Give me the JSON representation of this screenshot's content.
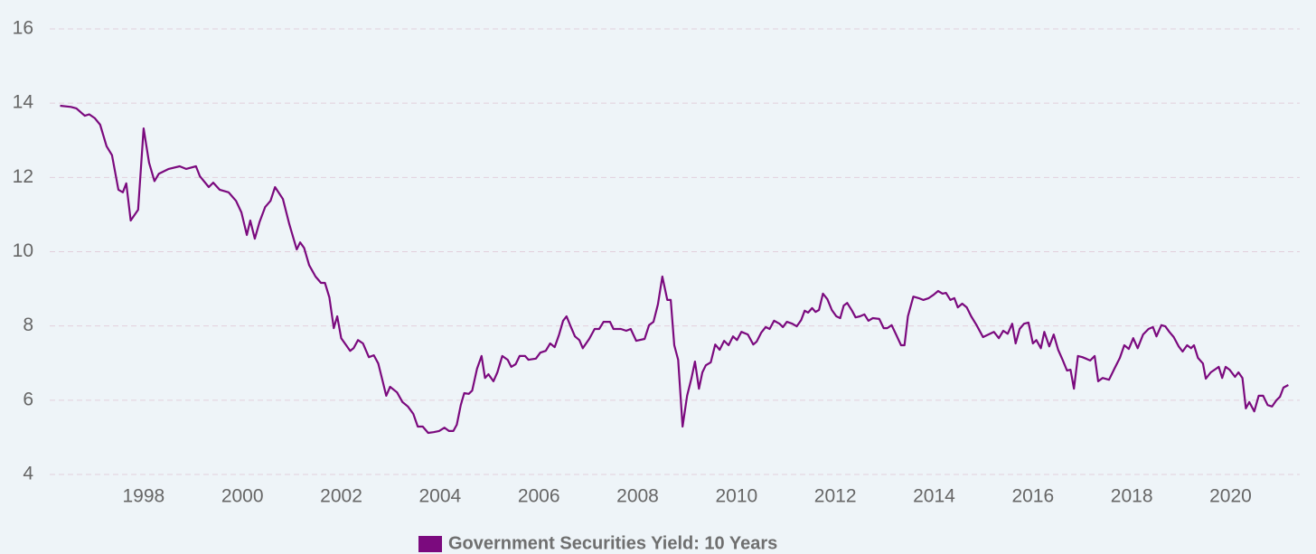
{
  "chart_data": {
    "type": "line",
    "x": [
      1996.31,
      1996.53,
      1996.64,
      1996.81,
      1996.9,
      1997.01,
      1997.12,
      1997.25,
      1997.36,
      1997.49,
      1997.58,
      1997.65,
      1997.74,
      1997.89,
      1998.0,
      1998.11,
      1998.22,
      1998.31,
      1998.51,
      1998.73,
      1998.86,
      1999.06,
      1999.14,
      1999.32,
      1999.41,
      1999.54,
      1999.72,
      1999.87,
      1999.98,
      2000.09,
      2000.16,
      2000.25,
      2000.35,
      2000.46,
      2000.57,
      2000.66,
      2000.82,
      2000.95,
      2001.1,
      2001.17,
      2001.25,
      2001.35,
      2001.48,
      2001.59,
      2001.67,
      2001.76,
      2001.85,
      2001.92,
      2002.0,
      2002.18,
      2002.25,
      2002.34,
      2002.44,
      2002.56,
      2002.66,
      2002.75,
      2002.84,
      2002.91,
      2002.99,
      2003.13,
      2003.24,
      2003.35,
      2003.46,
      2003.55,
      2003.65,
      2003.76,
      2003.87,
      2003.98,
      2004.09,
      2004.18,
      2004.27,
      2004.34,
      2004.42,
      2004.49,
      2004.58,
      2004.65,
      2004.75,
      2004.84,
      2004.91,
      2004.98,
      2005.08,
      2005.16,
      2005.26,
      2005.37,
      2005.44,
      2005.53,
      2005.61,
      2005.72,
      2005.79,
      2005.94,
      2006.03,
      2006.14,
      2006.23,
      2006.32,
      2006.41,
      2006.49,
      2006.56,
      2006.65,
      2006.73,
      2006.82,
      2006.89,
      2007.02,
      2007.13,
      2007.22,
      2007.31,
      2007.44,
      2007.51,
      2007.66,
      2007.77,
      2007.86,
      2007.97,
      2008.14,
      2008.23,
      2008.32,
      2008.41,
      2008.5,
      2008.6,
      2008.67,
      2008.74,
      2008.82,
      2008.91,
      2009.0,
      2009.09,
      2009.16,
      2009.24,
      2009.31,
      2009.38,
      2009.48,
      2009.57,
      2009.66,
      2009.75,
      2009.84,
      2009.93,
      2010.01,
      2010.1,
      2010.23,
      2010.34,
      2010.41,
      2010.5,
      2010.59,
      2010.67,
      2010.76,
      2010.87,
      2010.94,
      2011.02,
      2011.13,
      2011.22,
      2011.31,
      2011.38,
      2011.45,
      2011.53,
      2011.6,
      2011.67,
      2011.75,
      2011.84,
      2011.93,
      2012.02,
      2012.1,
      2012.17,
      2012.24,
      2012.34,
      2012.41,
      2012.5,
      2012.59,
      2012.67,
      2012.76,
      2012.89,
      2012.98,
      2013.05,
      2013.14,
      2013.23,
      2013.33,
      2013.4,
      2013.47,
      2013.58,
      2013.69,
      2013.78,
      2013.89,
      2013.99,
      2014.08,
      2014.17,
      2014.24,
      2014.33,
      2014.41,
      2014.48,
      2014.57,
      2014.66,
      2014.75,
      2014.86,
      2014.99,
      2015.1,
      2015.21,
      2015.31,
      2015.4,
      2015.49,
      2015.58,
      2015.65,
      2015.73,
      2015.82,
      2015.91,
      2016.0,
      2016.07,
      2016.16,
      2016.23,
      2016.33,
      2016.42,
      2016.51,
      2016.6,
      2016.69,
      2016.76,
      2016.83,
      2016.91,
      2017.0,
      2017.09,
      2017.16,
      2017.25,
      2017.32,
      2017.41,
      2017.54,
      2017.65,
      2017.76,
      2017.85,
      2017.94,
      2018.03,
      2018.12,
      2018.23,
      2018.34,
      2018.43,
      2018.5,
      2018.6,
      2018.68,
      2018.76,
      2018.85,
      2018.95,
      2019.03,
      2019.12,
      2019.2,
      2019.26,
      2019.34,
      2019.44,
      2019.5,
      2019.6,
      2019.71,
      2019.76,
      2019.83,
      2019.9,
      2019.98,
      2020.09,
      2020.16,
      2020.24,
      2020.31,
      2020.38,
      2020.48,
      2020.57,
      2020.66,
      2020.75,
      2020.84,
      2020.93,
      2021.0,
      2021.07,
      2021.17
    ],
    "series": [
      {
        "name": "Government Securities Yield: 10 Years",
        "color": "#7b0a7e",
        "values": [
          13.93,
          13.9,
          13.86,
          13.66,
          13.7,
          13.6,
          13.42,
          12.84,
          12.6,
          11.67,
          11.6,
          11.84,
          10.84,
          11.13,
          13.32,
          12.4,
          11.9,
          12.1,
          12.23,
          12.3,
          12.23,
          12.3,
          12.03,
          11.74,
          11.86,
          11.67,
          11.6,
          11.37,
          11.06,
          10.45,
          10.84,
          10.35,
          10.81,
          11.2,
          11.37,
          11.74,
          11.42,
          10.74,
          10.06,
          10.25,
          10.1,
          9.64,
          9.33,
          9.16,
          9.16,
          8.77,
          7.94,
          8.26,
          7.67,
          7.33,
          7.4,
          7.62,
          7.53,
          7.16,
          7.21,
          6.99,
          6.51,
          6.12,
          6.36,
          6.21,
          5.95,
          5.83,
          5.63,
          5.29,
          5.29,
          5.12,
          5.14,
          5.17,
          5.26,
          5.17,
          5.17,
          5.34,
          5.87,
          6.19,
          6.17,
          6.26,
          6.85,
          7.19,
          6.6,
          6.7,
          6.51,
          6.75,
          7.19,
          7.09,
          6.9,
          6.97,
          7.19,
          7.19,
          7.09,
          7.12,
          7.28,
          7.33,
          7.53,
          7.43,
          7.77,
          8.14,
          8.26,
          7.97,
          7.72,
          7.62,
          7.4,
          7.65,
          7.92,
          7.92,
          8.11,
          8.11,
          7.92,
          7.92,
          7.87,
          7.92,
          7.6,
          7.65,
          8.02,
          8.11,
          8.58,
          9.33,
          8.7,
          8.7,
          7.48,
          7.09,
          5.29,
          6.12,
          6.6,
          7.04,
          6.31,
          6.75,
          6.94,
          7.02,
          7.5,
          7.36,
          7.6,
          7.48,
          7.72,
          7.62,
          7.84,
          7.77,
          7.5,
          7.58,
          7.82,
          7.97,
          7.92,
          8.14,
          8.06,
          7.97,
          8.11,
          8.06,
          7.99,
          8.16,
          8.41,
          8.36,
          8.48,
          8.38,
          8.43,
          8.87,
          8.72,
          8.43,
          8.26,
          8.21,
          8.55,
          8.62,
          8.41,
          8.23,
          8.26,
          8.31,
          8.14,
          8.21,
          8.19,
          7.94,
          7.94,
          8.02,
          7.77,
          7.48,
          7.48,
          8.26,
          8.79,
          8.75,
          8.7,
          8.75,
          8.84,
          8.94,
          8.87,
          8.89,
          8.7,
          8.75,
          8.5,
          8.6,
          8.5,
          8.26,
          8.02,
          7.7,
          7.77,
          7.84,
          7.67,
          7.87,
          7.79,
          8.06,
          7.53,
          7.92,
          8.06,
          8.09,
          7.53,
          7.62,
          7.4,
          7.84,
          7.45,
          7.77,
          7.36,
          7.09,
          6.8,
          6.82,
          6.31,
          7.19,
          7.16,
          7.11,
          7.07,
          7.19,
          6.51,
          6.6,
          6.55,
          6.85,
          7.14,
          7.48,
          7.38,
          7.67,
          7.4,
          7.77,
          7.92,
          7.97,
          7.72,
          8.02,
          7.99,
          7.84,
          7.7,
          7.45,
          7.31,
          7.48,
          7.4,
          7.48,
          7.14,
          6.99,
          6.58,
          6.75,
          6.85,
          6.9,
          6.6,
          6.9,
          6.82,
          6.63,
          6.75,
          6.6,
          5.78,
          5.95,
          5.7,
          6.12,
          6.12,
          5.87,
          5.83,
          6.0,
          6.09,
          6.34,
          6.41
        ]
      }
    ],
    "xlim": [
      1996.1,
      2021.4
    ],
    "xticks": [
      1998,
      2000,
      2002,
      2004,
      2006,
      2008,
      2010,
      2012,
      2014,
      2016,
      2018,
      2020
    ],
    "ylim": [
      4,
      16
    ],
    "yticks": [
      4,
      6,
      8,
      10,
      12,
      14,
      16
    ],
    "grid": true,
    "legend": "bottom"
  }
}
